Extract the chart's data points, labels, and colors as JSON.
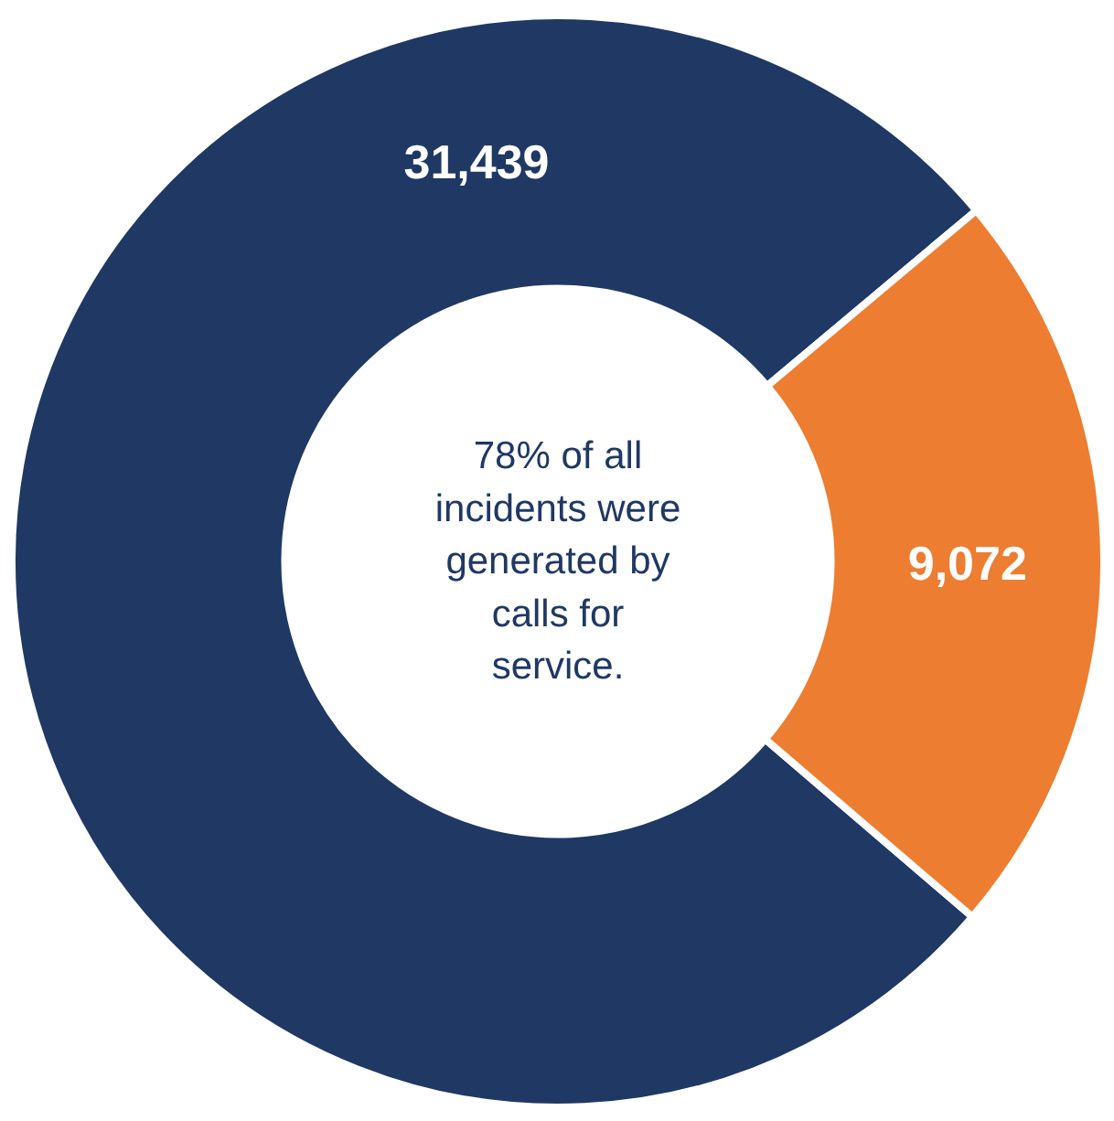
{
  "chart_data": {
    "type": "donut",
    "categories": [
      null,
      null
    ],
    "values": [
      31439,
      9072
    ],
    "colors": [
      "#1f3864",
      "#ed7d31"
    ],
    "data_labels": true,
    "value_labels": [
      "31,439",
      "9,072"
    ],
    "annotations": [
      "78% of all incidents were generated by calls for service."
    ]
  }
}
